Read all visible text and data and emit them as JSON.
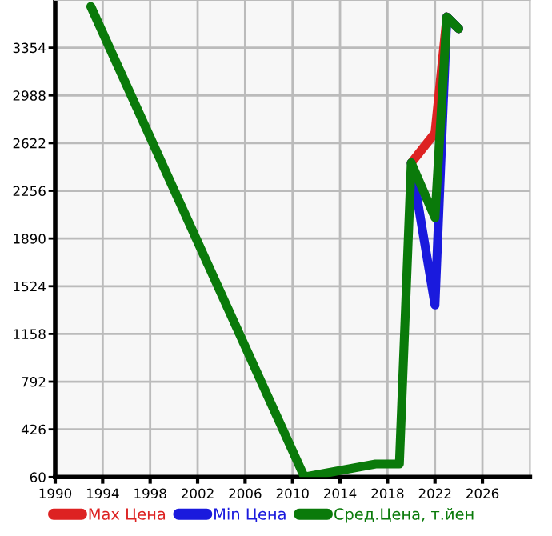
{
  "chart_data": {
    "type": "line",
    "xlim": [
      1990,
      2030
    ],
    "xticks": [
      1990,
      1994,
      1998,
      2002,
      2006,
      2010,
      2014,
      2018,
      2022,
      2026
    ],
    "ylim": [
      60,
      3720
    ],
    "yticks": [
      60,
      426,
      792,
      1158,
      1524,
      1890,
      2256,
      2622,
      2988,
      3354
    ],
    "grid": true,
    "legend": "bottom",
    "marker": "none",
    "line_style": "solid",
    "series": [
      {
        "name": "Max Цена",
        "color": "#dd2222",
        "x": [
          2020,
          2022,
          2023,
          2024
        ],
        "values": [
          2470,
          2700,
          3590,
          3500
        ]
      },
      {
        "name": "Min Цена",
        "color": "#1a1add",
        "x": [
          2020,
          2022,
          2023,
          2024
        ],
        "values": [
          2470,
          1380,
          3590,
          3500
        ]
      },
      {
        "name": "Сред.Цена, т.йен",
        "color": "#0a7a0a",
        "x": [
          1993,
          2011,
          2017,
          2019,
          2020,
          2022,
          2023,
          2024
        ],
        "values": [
          3670,
          60,
          160,
          160,
          2470,
          2050,
          3590,
          3500
        ]
      }
    ]
  }
}
